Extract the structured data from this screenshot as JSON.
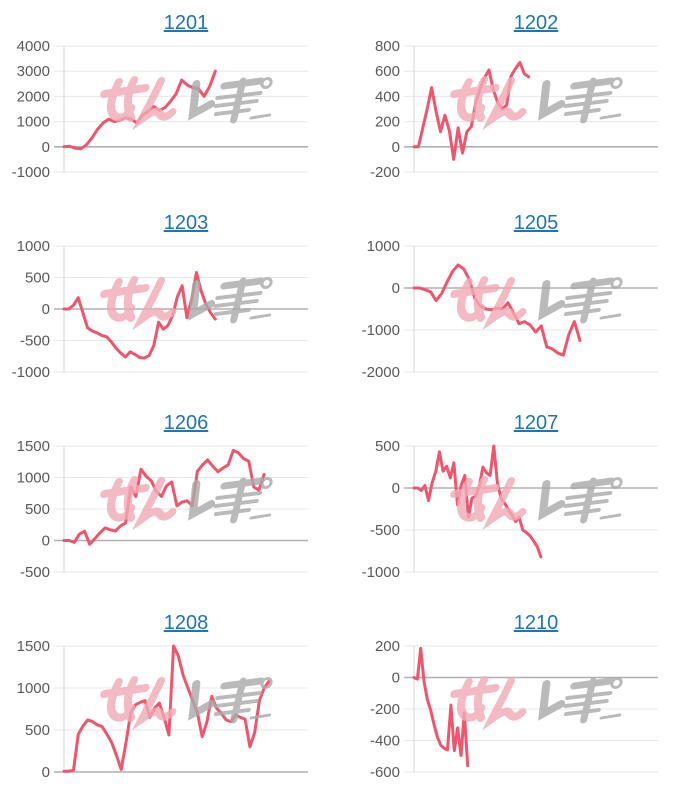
{
  "page": {
    "background": "#ffffff"
  },
  "style": {
    "line_color": "#f0556e",
    "grid_color": "#e7e7e7",
    "zero_line_color": "#b0b0b0",
    "axis_line_color": "#d4d4d4",
    "tick_label_color": "#595959",
    "title_color": "#2273b9",
    "watermark_pink": "#f2aab6",
    "watermark_gray": "#a9a9a9"
  },
  "watermark": {
    "name": "minrepo-logo-watermark"
  },
  "chart_data": [
    {
      "type": "line",
      "title": "1201",
      "xlabel": "",
      "ylabel": "",
      "ylim": [
        -1000,
        4000
      ],
      "y_ticks": [
        4000,
        3000,
        2000,
        1000,
        0,
        -1000
      ],
      "grid": true,
      "legend": "none",
      "span": 0.62,
      "values": [
        0,
        20,
        -50,
        -80,
        80,
        350,
        700,
        950,
        1100,
        1000,
        1050,
        1150,
        1100,
        950,
        1250,
        1400,
        1600,
        1450,
        1550,
        1800,
        2100,
        2650,
        2450,
        2350,
        2300,
        2000,
        2400,
        3000
      ]
    },
    {
      "type": "line",
      "title": "1202",
      "xlabel": "",
      "ylabel": "",
      "ylim": [
        -200,
        800
      ],
      "y_ticks": [
        800,
        600,
        400,
        200,
        0,
        -200
      ],
      "grid": true,
      "legend": "none",
      "span": 0.47,
      "values": [
        0,
        0,
        150,
        300,
        470,
        280,
        120,
        250,
        130,
        -100,
        150,
        -50,
        120,
        160,
        350,
        460,
        550,
        610,
        450,
        350,
        300,
        330,
        560,
        620,
        670,
        580,
        555
      ]
    },
    {
      "type": "line",
      "title": "1203",
      "xlabel": "",
      "ylabel": "",
      "ylim": [
        -1000,
        1000
      ],
      "y_ticks": [
        1000,
        500,
        0,
        -500,
        -1000
      ],
      "grid": true,
      "legend": "none",
      "span": 0.62,
      "values": [
        0,
        0,
        60,
        180,
        -60,
        -300,
        -350,
        -380,
        -420,
        -440,
        -520,
        -620,
        -700,
        -760,
        -680,
        -720,
        -770,
        -780,
        -740,
        -580,
        -210,
        -320,
        -260,
        -100,
        200,
        370,
        -140,
        150,
        580,
        290,
        80,
        -60,
        -160
      ]
    },
    {
      "type": "line",
      "title": "1205",
      "xlabel": "",
      "ylabel": "",
      "ylim": [
        -2000,
        1000
      ],
      "y_ticks": [
        1000,
        0,
        -1000,
        -2000
      ],
      "grid": true,
      "legend": "none",
      "span": 0.68,
      "values": [
        0,
        0,
        -40,
        -90,
        -300,
        -130,
        150,
        400,
        550,
        450,
        200,
        -250,
        -430,
        -500,
        -520,
        -480,
        -500,
        -350,
        -600,
        -850,
        -800,
        -880,
        -1050,
        -900,
        -1400,
        -1450,
        -1550,
        -1600,
        -1100,
        -800,
        -1250
      ]
    },
    {
      "type": "line",
      "title": "1206",
      "xlabel": "",
      "ylabel": "",
      "ylim": [
        -500,
        1500
      ],
      "y_ticks": [
        1500,
        1000,
        500,
        0,
        -500
      ],
      "grid": true,
      "legend": "none",
      "span": 0.82,
      "values": [
        0,
        0,
        -30,
        100,
        150,
        -60,
        30,
        120,
        200,
        170,
        150,
        230,
        280,
        850,
        700,
        1130,
        1020,
        950,
        780,
        700,
        870,
        930,
        550,
        610,
        630,
        550,
        1100,
        1200,
        1280,
        1180,
        1090,
        1150,
        1200,
        1430,
        1390,
        1300,
        1260,
        850,
        800,
        1050
      ]
    },
    {
      "type": "line",
      "title": "1207",
      "xlabel": "",
      "ylabel": "",
      "ylim": [
        -1000,
        500
      ],
      "y_ticks": [
        500,
        0,
        -500,
        -1000
      ],
      "grid": true,
      "legend": "none",
      "span": 0.52,
      "values": [
        0,
        0,
        -30,
        30,
        -150,
        60,
        200,
        430,
        200,
        260,
        120,
        300,
        -200,
        30,
        150,
        -350,
        -120,
        -100,
        20,
        250,
        180,
        150,
        500,
        60,
        -120,
        -180,
        -260,
        -320,
        -400,
        -350,
        -500,
        -530,
        -570,
        -630,
        -700,
        -820
      ]
    },
    {
      "type": "line",
      "title": "1208",
      "xlabel": "",
      "ylabel": "",
      "ylim": [
        0,
        1500
      ],
      "y_ticks": [
        1500,
        1000,
        500,
        0
      ],
      "grid": true,
      "legend": "none",
      "span": 0.84,
      "values": [
        10,
        10,
        20,
        450,
        550,
        620,
        600,
        560,
        540,
        450,
        350,
        200,
        30,
        350,
        700,
        800,
        830,
        850,
        650,
        760,
        820,
        650,
        440,
        1500,
        1380,
        1150,
        1000,
        850,
        700,
        420,
        600,
        900,
        760,
        700,
        620,
        600,
        680,
        650,
        630,
        300,
        470,
        850,
        1000,
        1080
      ]
    },
    {
      "type": "line",
      "title": "1210",
      "xlabel": "",
      "ylabel": "",
      "ylim": [
        -600,
        200
      ],
      "y_ticks": [
        200,
        0,
        -200,
        -400,
        -600
      ],
      "grid": true,
      "legend": "none",
      "span": 0.22,
      "values": [
        0,
        -10,
        185,
        -30,
        -140,
        -210,
        -300,
        -380,
        -430,
        -450,
        -460,
        -175,
        -465,
        -320,
        -495,
        -225,
        -560
      ]
    }
  ]
}
